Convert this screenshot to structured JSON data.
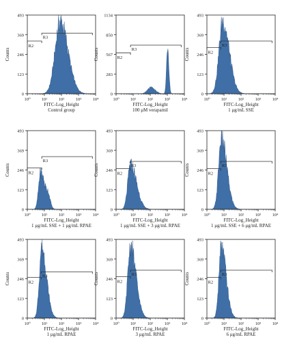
{
  "colors": {
    "fill": "#3f6fa6",
    "edge": "#2c5286",
    "axis": "#222222",
    "gate": "#333333"
  },
  "x_ticks": [
    "10⁰",
    "10¹",
    "10²",
    "10³",
    "10⁴"
  ],
  "chart_data": [
    {
      "type": "area",
      "xlabel": "FITC-Log_Height",
      "ylabel": "Counts",
      "caption": "Control group",
      "x_scale": "log",
      "xlim": [
        1,
        10000
      ],
      "ylim": [
        0,
        493
      ],
      "yticks": [
        "0",
        "123",
        "246",
        "369",
        "493"
      ],
      "gates": [
        {
          "name": "R2",
          "x": [
            1,
            7
          ],
          "y": 330
        },
        {
          "name": "R3",
          "x": [
            7,
            6500
          ],
          "y": 380
        }
      ],
      "peaks": [
        {
          "x": 85,
          "y": 470,
          "w": 0.3,
          "sr": 1.5
        }
      ]
    },
    {
      "type": "area",
      "xlabel": "FITC-Log_Height",
      "ylabel": "Counts",
      "caption": "100 μM verapamil",
      "x_scale": "log",
      "xlim": [
        1,
        10000
      ],
      "ylim": [
        0,
        1134
      ],
      "yticks": [
        "0",
        "283",
        "567",
        "850",
        "1134"
      ],
      "gates": [
        {
          "name": "R2",
          "x": [
            1,
            7
          ],
          "y": 590
        },
        {
          "name": "R3",
          "x": [
            7,
            6500
          ],
          "y": 700
        }
      ],
      "peaks": [
        {
          "x": 1050,
          "y": 720,
          "w": 0.065,
          "sr": 1.1
        },
        {
          "x": 110,
          "y": 95,
          "w": 0.2,
          "sr": 1.2
        }
      ]
    },
    {
      "type": "area",
      "xlabel": "FITC-Log_Height",
      "ylabel": "Counts",
      "caption": "1 μg/mL SSE",
      "x_scale": "log",
      "xlim": [
        1,
        10000
      ],
      "ylim": [
        0,
        493
      ],
      "yticks": [
        "0",
        "123",
        "246",
        "369",
        "493"
      ],
      "gates": [
        {
          "name": "R2",
          "x": [
            1,
            6.5
          ],
          "y": 290
        },
        {
          "name": "R3",
          "x": [
            6.5,
            6500
          ],
          "y": 330
        }
      ],
      "peaks": [
        {
          "x": 8.5,
          "y": 470,
          "w": 0.22,
          "sr": 1.7
        }
      ]
    },
    {
      "type": "area",
      "xlabel": "FITC-Log_Height",
      "ylabel": "Counts",
      "caption": "1 μg/mL SSE + 1 μg/mL RPAE",
      "x_scale": "log",
      "xlim": [
        1,
        10000
      ],
      "ylim": [
        0,
        493
      ],
      "yticks": [
        "0",
        "123",
        "246",
        "369",
        "493"
      ],
      "gates": [
        {
          "name": "R2",
          "x": [
            1,
            7
          ],
          "y": 260
        },
        {
          "name": "R3",
          "x": [
            7,
            6500
          ],
          "y": 330
        }
      ],
      "peaks": [
        {
          "x": 6,
          "y": 240,
          "w": 0.12,
          "sr": 2.2
        },
        {
          "x": 17,
          "y": 60,
          "w": 0.1,
          "sr": 1.2
        }
      ]
    },
    {
      "type": "area",
      "xlabel": "FITC-Log_Height",
      "ylabel": "Counts",
      "caption": "1 μg/mL SSE + 3 μg/mL RPAE",
      "x_scale": "log",
      "xlim": [
        1,
        10000
      ],
      "ylim": [
        0,
        493
      ],
      "yticks": [
        "0",
        "123",
        "246",
        "369",
        "493"
      ],
      "gates": [
        {
          "name": "R2",
          "x": [
            1,
            6.5
          ],
          "y": 255
        },
        {
          "name": "R3",
          "x": [
            6.5,
            6500
          ],
          "y": 300
        }
      ],
      "peaks": [
        {
          "x": 7,
          "y": 290,
          "w": 0.16,
          "sr": 2.2
        }
      ]
    },
    {
      "type": "area",
      "xlabel": "FITC-Log_Height",
      "ylabel": "Counts",
      "caption": "1 μg/mL SSE + 6 μg/mL RPAE",
      "x_scale": "log",
      "xlim": [
        1,
        10000
      ],
      "ylim": [
        0,
        493
      ],
      "yticks": [
        "0",
        "123",
        "246",
        "369",
        "493"
      ],
      "gates": [
        {
          "name": "R2",
          "x": [
            1,
            6.5
          ],
          "y": 255
        },
        {
          "name": "R3",
          "x": [
            6.5,
            6500
          ],
          "y": 300
        }
      ],
      "peaks": [
        {
          "x": 7,
          "y": 460,
          "w": 0.16,
          "sr": 2.0
        }
      ]
    },
    {
      "type": "area",
      "xlabel": "FITC-Log_Height",
      "ylabel": "Counts",
      "caption": "1 μg/mL RPAE",
      "x_scale": "log",
      "xlim": [
        1,
        10000
      ],
      "ylim": [
        0,
        493
      ],
      "yticks": [
        "0",
        "123",
        "246",
        "369",
        "493"
      ],
      "gates": [
        {
          "name": "R2",
          "x": [
            1,
            6.5
          ],
          "y": 255
        },
        {
          "name": "R3",
          "x": [
            6.5,
            6500
          ],
          "y": 290
        }
      ],
      "peaks": [
        {
          "x": 7,
          "y": 460,
          "w": 0.14,
          "sr": 2.0
        }
      ]
    },
    {
      "type": "area",
      "xlabel": "FITC-Log_Height",
      "ylabel": "Counts",
      "caption": "3 μg/mL RPAE",
      "x_scale": "log",
      "xlim": [
        1,
        10000
      ],
      "ylim": [
        0,
        493
      ],
      "yticks": [
        "0",
        "123",
        "246",
        "369",
        "493"
      ],
      "gates": [
        {
          "name": "R2",
          "x": [
            1,
            7
          ],
          "y": 260
        },
        {
          "name": "R3",
          "x": [
            7,
            6500
          ],
          "y": 300
        }
      ],
      "peaks": [
        {
          "x": 7,
          "y": 465,
          "w": 0.16,
          "sr": 2.0
        }
      ]
    },
    {
      "type": "area",
      "xlabel": "FITC-Log_Height",
      "ylabel": "Counts",
      "caption": "6 μg/mL RPAE",
      "x_scale": "log",
      "xlim": [
        1,
        10000
      ],
      "ylim": [
        0,
        493
      ],
      "yticks": [
        "0",
        "123",
        "246",
        "369",
        "493"
      ],
      "gates": [
        {
          "name": "R2",
          "x": [
            1,
            6.5
          ],
          "y": 255
        },
        {
          "name": "R3",
          "x": [
            6.5,
            6500
          ],
          "y": 300
        }
      ],
      "peaks": [
        {
          "x": 7,
          "y": 460,
          "w": 0.14,
          "sr": 2.0
        }
      ]
    }
  ]
}
